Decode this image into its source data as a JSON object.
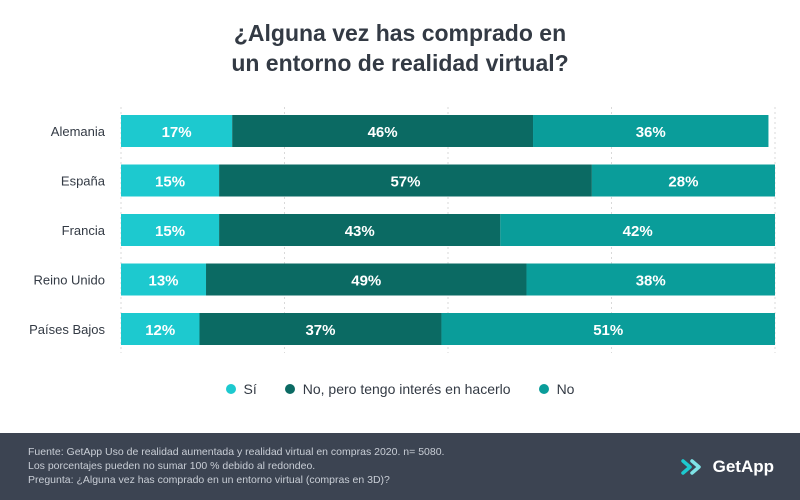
{
  "chart_data": {
    "type": "bar",
    "orientation": "horizontal",
    "stacked": true,
    "title": "¿Alguna vez has comprado en un entorno de realidad virtual?",
    "title_lines": [
      "¿Alguna vez has comprado en",
      "un entorno de realidad virtual?"
    ],
    "categories": [
      "Alemania",
      "España",
      "Francia",
      "Reino Unido",
      "Países Bajos"
    ],
    "series": [
      {
        "name": "Sí",
        "color": "#1dc9cf",
        "values": [
          17,
          15,
          15,
          13,
          12
        ]
      },
      {
        "name": "No, pero tengo interés en hacerlo",
        "color": "#0b6a63",
        "values": [
          46,
          57,
          43,
          49,
          37
        ]
      },
      {
        "name": "No",
        "color": "#0a9d9a",
        "values": [
          36,
          28,
          42,
          38,
          51
        ]
      }
    ],
    "value_suffix": "%",
    "xlim": [
      0,
      100
    ],
    "grid": true,
    "legend_position": "bottom"
  },
  "footer": {
    "notes": [
      "Fuente: GetApp Uso de realidad aumentada y realidad virtual en compras 2020. n= 5080.",
      "Los porcentajes pueden no sumar 100 % debido al redondeo.",
      "Pregunta: ¿Alguna vez has comprado en un entorno virtual (compras en 3D)?"
    ],
    "brand": "GetApp",
    "brand_icon": "getapp-logo-icon"
  }
}
